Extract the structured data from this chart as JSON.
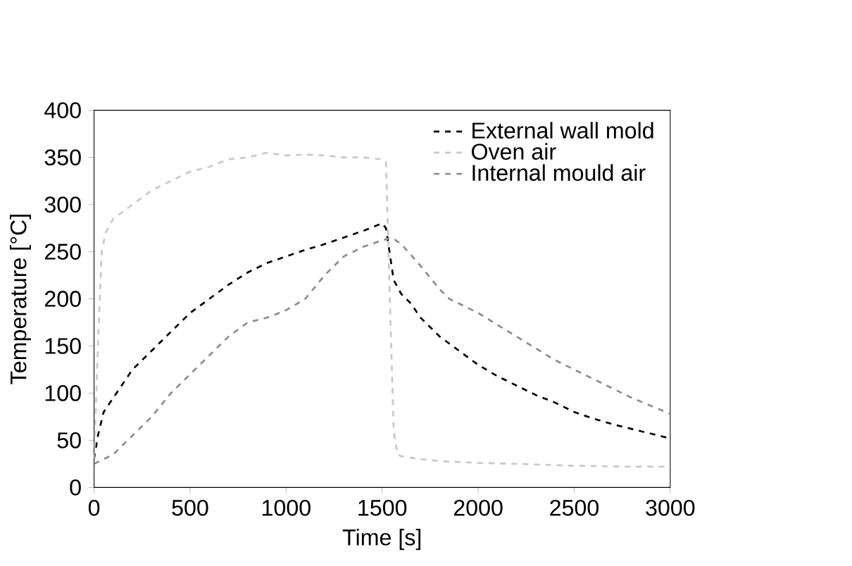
{
  "chart_data": {
    "type": "line",
    "xlabel": "Time [s]",
    "ylabel": "Temperature [°C]",
    "xlim": [
      0,
      3000
    ],
    "ylim": [
      0,
      400
    ],
    "xticks": [
      0,
      500,
      1000,
      1500,
      2000,
      2500,
      3000
    ],
    "yticks": [
      0,
      50,
      100,
      150,
      200,
      250,
      300,
      350,
      400
    ],
    "grid": false,
    "legend": "top right",
    "line_style": "dashed",
    "marker": "none",
    "series": [
      {
        "name": "External wall mold",
        "color": "#000000",
        "x": [
          0,
          20,
          50,
          100,
          150,
          200,
          300,
          400,
          500,
          600,
          700,
          800,
          900,
          1000,
          1100,
          1200,
          1300,
          1400,
          1500,
          1520,
          1560,
          1600,
          1650,
          1700,
          1800,
          1900,
          2000,
          2100,
          2200,
          2300,
          2400,
          2500,
          2600,
          2700,
          2800,
          2900,
          3000
        ],
        "values": [
          30,
          55,
          80,
          95,
          110,
          125,
          145,
          165,
          185,
          200,
          215,
          228,
          238,
          245,
          252,
          258,
          265,
          272,
          280,
          275,
          220,
          205,
          195,
          180,
          160,
          145,
          130,
          118,
          108,
          98,
          90,
          80,
          73,
          67,
          62,
          57,
          52
        ]
      },
      {
        "name": "Oven air",
        "color": "#c8c8c8",
        "x": [
          0,
          20,
          40,
          60,
          100,
          200,
          300,
          400,
          500,
          600,
          700,
          800,
          900,
          1000,
          1100,
          1200,
          1300,
          1400,
          1500,
          1520,
          1540,
          1560,
          1580,
          1600,
          1700,
          1800,
          2000,
          2200,
          2500,
          2800,
          3000
        ],
        "values": [
          30,
          150,
          250,
          270,
          285,
          300,
          315,
          325,
          335,
          340,
          348,
          350,
          355,
          352,
          353,
          352,
          350,
          350,
          348,
          345,
          200,
          60,
          35,
          33,
          30,
          28,
          26,
          25,
          23,
          22,
          22
        ]
      },
      {
        "name": "Internal mould air",
        "color": "#8c8c8c",
        "x": [
          0,
          100,
          200,
          300,
          400,
          500,
          600,
          700,
          800,
          900,
          1000,
          1100,
          1200,
          1300,
          1400,
          1500,
          1550,
          1600,
          1700,
          1800,
          1850,
          2000,
          2200,
          2400,
          2600,
          2800,
          3000
        ],
        "values": [
          25,
          35,
          55,
          75,
          100,
          120,
          140,
          160,
          175,
          180,
          188,
          200,
          225,
          245,
          255,
          262,
          265,
          258,
          235,
          210,
          200,
          185,
          160,
          135,
          115,
          95,
          78
        ]
      }
    ]
  }
}
